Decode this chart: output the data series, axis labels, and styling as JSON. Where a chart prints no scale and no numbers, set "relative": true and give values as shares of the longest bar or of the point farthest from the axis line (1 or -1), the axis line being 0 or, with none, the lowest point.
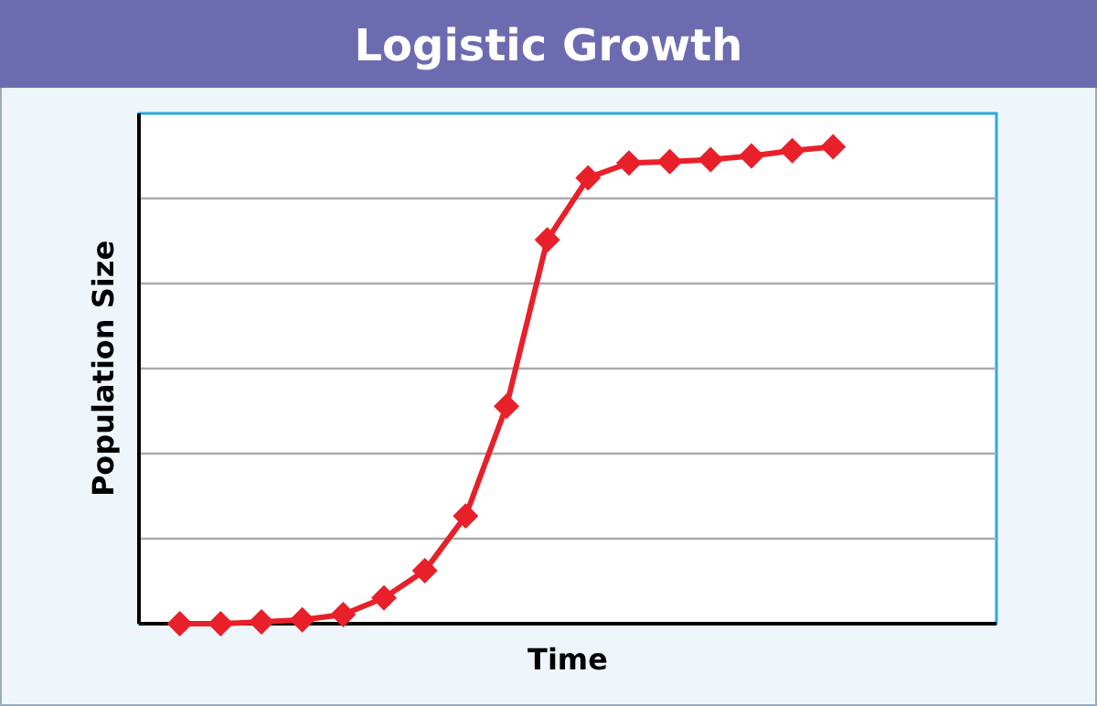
{
  "chart_data": {
    "type": "line",
    "title": "Logistic Growth",
    "xlabel": "Time",
    "ylabel": "Population Size",
    "relative": true,
    "grid": "y",
    "marker": "diamond",
    "line_style": "solid",
    "categories": [
      null,
      null,
      null,
      null,
      null,
      null,
      null,
      null,
      null,
      null,
      null,
      null,
      null,
      null,
      null,
      null,
      null,
      null,
      null,
      null
    ],
    "series": [
      {
        "color": "#e8202a",
        "values": [
          0,
          0,
          0.004,
          0.008,
          0.019,
          0.054,
          0.111,
          0.226,
          0.456,
          0.805,
          0.935,
          0.966,
          0.969,
          0.973,
          0.981,
          0.992,
          1,
          null,
          null,
          null
        ]
      }
    ]
  }
}
